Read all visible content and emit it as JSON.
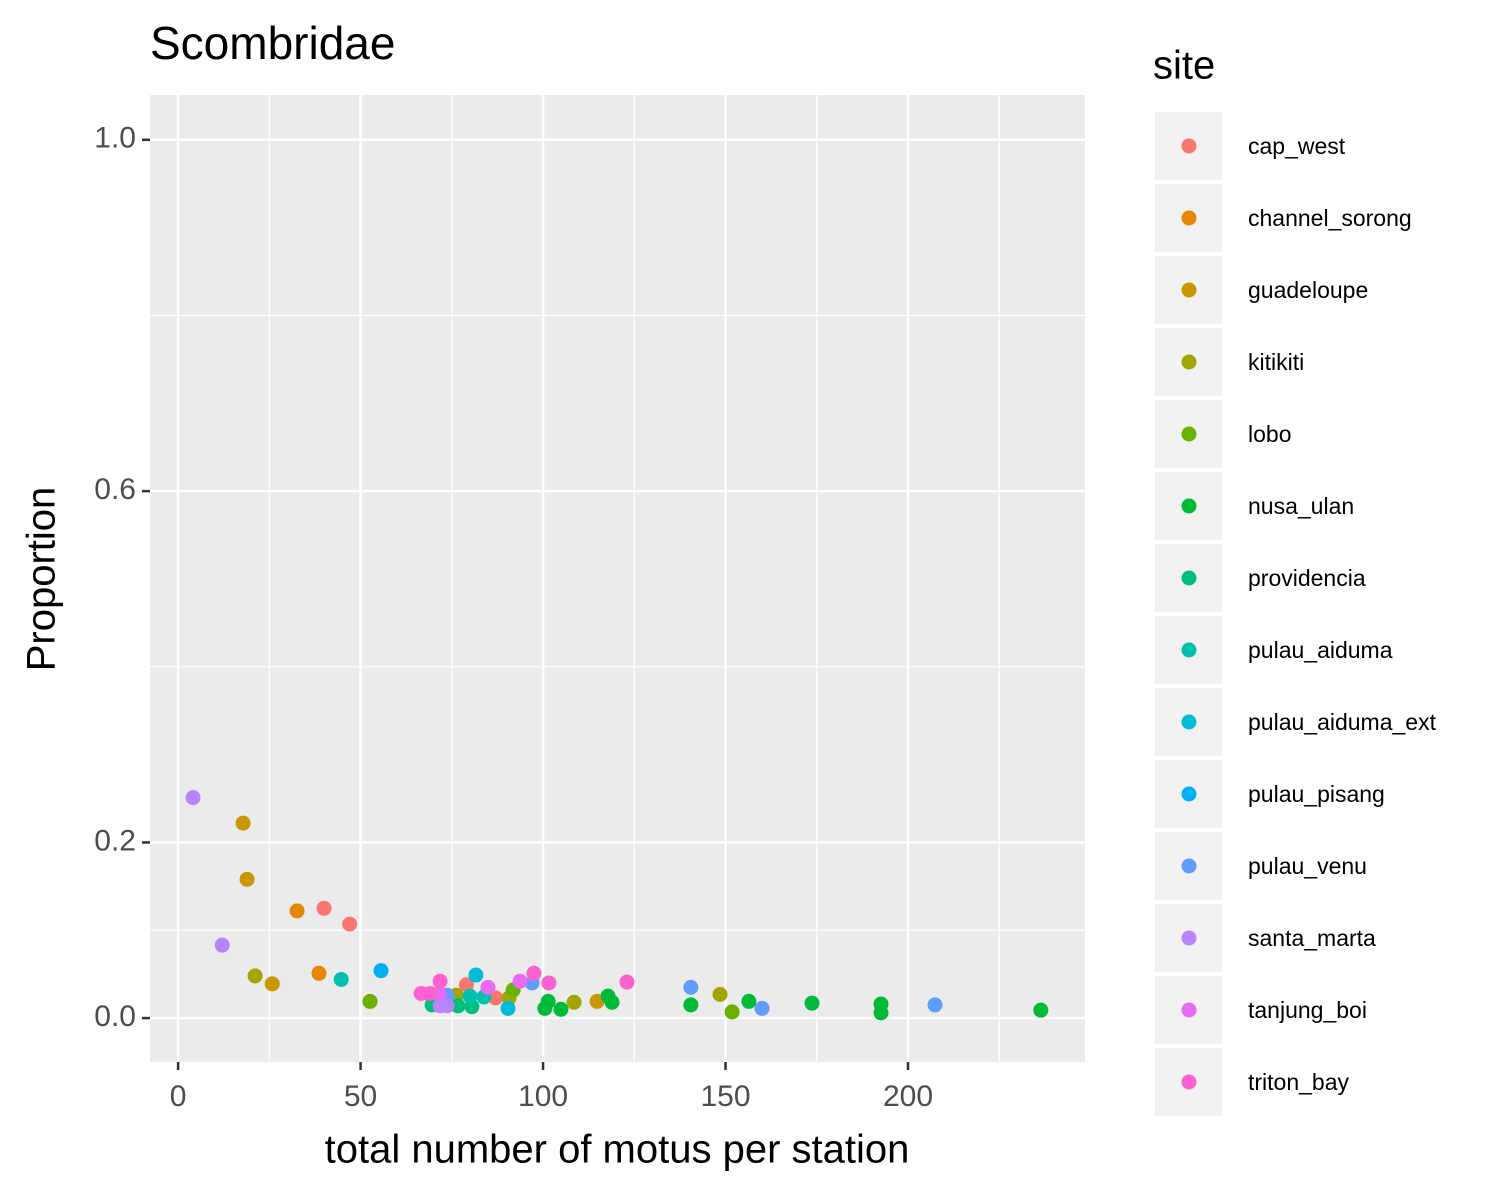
{
  "chart_data": {
    "type": "scatter",
    "title": "Scombridae",
    "x_label": "total number of motus per station",
    "y_label": "Proportion",
    "legend_title": "site",
    "legend_position": "right",
    "grid": true,
    "xlim": [
      -7.7,
      248.5
    ],
    "ylim": [
      -0.05,
      1.051
    ],
    "xticks": [
      0,
      50,
      100,
      150,
      200
    ],
    "x_minor_grid": [
      25,
      75,
      125,
      175,
      225
    ],
    "yticks": [
      {
        "value": 0,
        "label": "0.0"
      },
      0.2,
      0.6,
      {
        "value": 1,
        "label": "1.0"
      }
    ],
    "y_minor_grid": [
      0.1,
      0.4,
      0.8
    ],
    "series": [
      {
        "name": "cap_west",
        "color": "#F8766D",
        "x": [
          40,
          47,
          79,
          87
        ],
        "values": [
          0.125,
          0.107,
          0.038,
          0.023
        ]
      },
      {
        "name": "channel_sorong",
        "color": "#E58700",
        "x": [
          32.6,
          38.6
        ],
        "values": [
          0.122,
          0.051
        ]
      },
      {
        "name": "guadeloupe",
        "color": "#C99800",
        "x": [
          17.8,
          18.9,
          25.8,
          114.8
        ],
        "values": [
          0.222,
          0.158,
          0.039,
          0.019
        ]
      },
      {
        "name": "kitikiti",
        "color": "#A3A500",
        "x": [
          21.1,
          108.5,
          148.5,
          76.2,
          90.7
        ],
        "values": [
          0.048,
          0.018,
          0.027,
          0.026,
          0.023
        ]
      },
      {
        "name": "lobo",
        "color": "#6BB100",
        "x": [
          52.6,
          151.8,
          91.8
        ],
        "values": [
          0.019,
          0.007,
          0.032
        ]
      },
      {
        "name": "nusa_ulan",
        "color": "#00BA38",
        "x": [
          140.5,
          156.4,
          173.7,
          192.6,
          192.6,
          236.4,
          101.4,
          104.9,
          117.8,
          118.9,
          100.5
        ],
        "values": [
          0.015,
          0.019,
          0.017,
          0.016,
          0.006,
          0.009,
          0.019,
          0.01,
          0.025,
          0.018,
          0.011
        ]
      },
      {
        "name": "providencia",
        "color": "#00BF7D",
        "x": [
          69.6,
          80.5,
          76.7
        ],
        "values": [
          0.015,
          0.013,
          0.014
        ]
      },
      {
        "name": "pulau_aiduma",
        "color": "#00C0AF",
        "x": [
          44.7,
          83.8,
          80
        ],
        "values": [
          0.044,
          0.024,
          0.025
        ]
      },
      {
        "name": "pulau_aiduma_ext",
        "color": "#00BCD8",
        "x": [
          81.6,
          90.4
        ],
        "values": [
          0.049,
          0.011
        ]
      },
      {
        "name": "pulau_pisang",
        "color": "#00B0F6",
        "x": [
          55.6
        ],
        "values": [
          0.054
        ]
      },
      {
        "name": "pulau_venu",
        "color": "#619CFF",
        "x": [
          140.5,
          160,
          207.4,
          97,
          73.7
        ],
        "values": [
          0.035,
          0.011,
          0.015,
          0.04,
          0.026
        ]
      },
      {
        "name": "santa_marta",
        "color": "#B983FF",
        "x": [
          4.1,
          12.1,
          71.8,
          73.7
        ],
        "values": [
          0.251,
          0.083,
          0.014,
          0.014
        ]
      },
      {
        "name": "tanjung_boi",
        "color": "#E76BF3",
        "x": [
          84.9,
          93.7,
          71.5
        ],
        "values": [
          0.035,
          0.042,
          0.028
        ]
      },
      {
        "name": "triton_bay",
        "color": "#FD61D1",
        "x": [
          71.8,
          97.5,
          101.6,
          123,
          66.6,
          69
        ],
        "values": [
          0.042,
          0.051,
          0.04,
          0.041,
          0.028,
          0.028
        ]
      }
    ]
  }
}
